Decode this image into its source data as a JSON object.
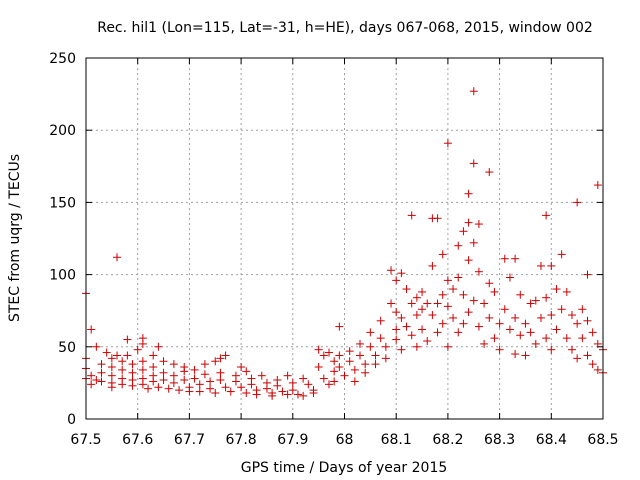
{
  "colors": {
    "points": "#cc0000",
    "axis": "#000000",
    "grid": "#a0a0a0"
  },
  "chart_data": {
    "type": "scatter",
    "title": "Rec. hil1 (Lon=115, Lat=-31, h=HE), days 067-068, 2015, window 002",
    "xlabel": "GPS time / Days of year 2015",
    "ylabel": "STEC from uqrg / TECUs",
    "xlim": [
      67.5,
      68.5
    ],
    "ylim": [
      0,
      250
    ],
    "xticks": [
      "67.5",
      "67.6",
      "67.7",
      "67.8",
      "67.9",
      "68",
      "68.1",
      "68.2",
      "68.3",
      "68.4",
      "68.5"
    ],
    "yticks": [
      "0",
      "50",
      "100",
      "150",
      "200",
      "250"
    ],
    "grid": true,
    "marker": "plus",
    "series": [
      {
        "name": "STEC",
        "points": [
          [
            67.5,
            87
          ],
          [
            67.51,
            62
          ],
          [
            67.52,
            50
          ],
          [
            67.5,
            42
          ],
          [
            67.5,
            35
          ],
          [
            67.51,
            30
          ],
          [
            67.5,
            28
          ],
          [
            67.52,
            27
          ],
          [
            67.51,
            24
          ],
          [
            67.53,
            38
          ],
          [
            67.53,
            32
          ],
          [
            67.53,
            26
          ],
          [
            67.54,
            46
          ],
          [
            67.55,
            42
          ],
          [
            67.55,
            36
          ],
          [
            67.55,
            30
          ],
          [
            67.55,
            25
          ],
          [
            67.55,
            22
          ],
          [
            67.56,
            112
          ],
          [
            67.56,
            44
          ],
          [
            67.57,
            40
          ],
          [
            67.57,
            34
          ],
          [
            67.57,
            28
          ],
          [
            67.57,
            24
          ],
          [
            67.58,
            55
          ],
          [
            67.58,
            44
          ],
          [
            67.59,
            38
          ],
          [
            67.59,
            32
          ],
          [
            67.59,
            27
          ],
          [
            67.59,
            23
          ],
          [
            67.6,
            48
          ],
          [
            67.61,
            56
          ],
          [
            67.61,
            52
          ],
          [
            67.61,
            40
          ],
          [
            67.61,
            34
          ],
          [
            67.61,
            28
          ],
          [
            67.61,
            24
          ],
          [
            67.62,
            21
          ],
          [
            67.63,
            44
          ],
          [
            67.63,
            36
          ],
          [
            67.63,
            30
          ],
          [
            67.63,
            26
          ],
          [
            67.64,
            50
          ],
          [
            67.64,
            22
          ],
          [
            67.65,
            40
          ],
          [
            67.65,
            32
          ],
          [
            67.65,
            27
          ],
          [
            67.66,
            21
          ],
          [
            67.67,
            38
          ],
          [
            67.67,
            30
          ],
          [
            67.67,
            25
          ],
          [
            67.68,
            20
          ],
          [
            67.69,
            36
          ],
          [
            67.69,
            33
          ],
          [
            67.69,
            27
          ],
          [
            67.7,
            22
          ],
          [
            67.7,
            19
          ],
          [
            67.71,
            34
          ],
          [
            67.71,
            28
          ],
          [
            67.72,
            24
          ],
          [
            67.72,
            19
          ],
          [
            67.73,
            38
          ],
          [
            67.73,
            31
          ],
          [
            67.74,
            26
          ],
          [
            67.74,
            21
          ],
          [
            67.75,
            18
          ],
          [
            67.75,
            40
          ],
          [
            67.76,
            42
          ],
          [
            67.76,
            32
          ],
          [
            67.76,
            27
          ],
          [
            67.77,
            44
          ],
          [
            67.77,
            22
          ],
          [
            67.78,
            19
          ],
          [
            67.79,
            30
          ],
          [
            67.79,
            26
          ],
          [
            67.8,
            36
          ],
          [
            67.8,
            22
          ],
          [
            67.81,
            18
          ],
          [
            67.81,
            33
          ],
          [
            67.82,
            28
          ],
          [
            67.82,
            24
          ],
          [
            67.83,
            20
          ],
          [
            67.83,
            17
          ],
          [
            67.84,
            30
          ],
          [
            67.85,
            25
          ],
          [
            67.85,
            21
          ],
          [
            67.86,
            18
          ],
          [
            67.86,
            16
          ],
          [
            67.87,
            27
          ],
          [
            67.87,
            23
          ],
          [
            67.88,
            19
          ],
          [
            67.89,
            17
          ],
          [
            67.89,
            30
          ],
          [
            67.9,
            25
          ],
          [
            67.9,
            20
          ],
          [
            67.91,
            17
          ],
          [
            67.92,
            16
          ],
          [
            67.92,
            28
          ],
          [
            67.93,
            24
          ],
          [
            67.94,
            20
          ],
          [
            67.94,
            18
          ],
          [
            67.95,
            36
          ],
          [
            67.95,
            48
          ],
          [
            67.96,
            44
          ],
          [
            67.96,
            28
          ],
          [
            67.97,
            24
          ],
          [
            67.97,
            46
          ],
          [
            67.98,
            40
          ],
          [
            67.98,
            33
          ],
          [
            67.98,
            26
          ],
          [
            67.99,
            64
          ],
          [
            67.99,
            44
          ],
          [
            67.99,
            36
          ],
          [
            68.0,
            30
          ],
          [
            68.01,
            47
          ],
          [
            68.01,
            40
          ],
          [
            68.02,
            34
          ],
          [
            68.02,
            26
          ],
          [
            68.03,
            52
          ],
          [
            68.03,
            44
          ],
          [
            68.04,
            38
          ],
          [
            68.04,
            32
          ],
          [
            68.05,
            60
          ],
          [
            68.05,
            50
          ],
          [
            68.06,
            44
          ],
          [
            68.06,
            38
          ],
          [
            68.07,
            68
          ],
          [
            68.07,
            56
          ],
          [
            68.08,
            50
          ],
          [
            68.08,
            42
          ],
          [
            68.09,
            103
          ],
          [
            68.09,
            80
          ],
          [
            68.1,
            96
          ],
          [
            68.1,
            74
          ],
          [
            68.1,
            62
          ],
          [
            68.1,
            55
          ],
          [
            68.11,
            101
          ],
          [
            68.11,
            70
          ],
          [
            68.11,
            48
          ],
          [
            68.12,
            90
          ],
          [
            68.12,
            64
          ],
          [
            68.13,
            141
          ],
          [
            68.13,
            80
          ],
          [
            68.13,
            58
          ],
          [
            68.14,
            84
          ],
          [
            68.14,
            72
          ],
          [
            68.14,
            50
          ],
          [
            68.15,
            88
          ],
          [
            68.15,
            76
          ],
          [
            68.15,
            62
          ],
          [
            68.16,
            80
          ],
          [
            68.16,
            54
          ],
          [
            68.17,
            139
          ],
          [
            68.17,
            106
          ],
          [
            68.17,
            72
          ],
          [
            68.18,
            139
          ],
          [
            68.18,
            80
          ],
          [
            68.18,
            60
          ],
          [
            68.19,
            114
          ],
          [
            68.19,
            86
          ],
          [
            68.19,
            66
          ],
          [
            68.2,
            191
          ],
          [
            68.2,
            96
          ],
          [
            68.2,
            78
          ],
          [
            68.2,
            50
          ],
          [
            68.21,
            90
          ],
          [
            68.21,
            70
          ],
          [
            68.22,
            120
          ],
          [
            68.22,
            98
          ],
          [
            68.22,
            60
          ],
          [
            68.23,
            130
          ],
          [
            68.23,
            86
          ],
          [
            68.23,
            66
          ],
          [
            68.24,
            156
          ],
          [
            68.24,
            136
          ],
          [
            68.24,
            110
          ],
          [
            68.24,
            74
          ],
          [
            68.25,
            227
          ],
          [
            68.25,
            177
          ],
          [
            68.25,
            122
          ],
          [
            68.25,
            82
          ],
          [
            68.26,
            135
          ],
          [
            68.26,
            102
          ],
          [
            68.26,
            64
          ],
          [
            68.27,
            80
          ],
          [
            68.27,
            52
          ],
          [
            68.28,
            171
          ],
          [
            68.28,
            94
          ],
          [
            68.28,
            70
          ],
          [
            68.29,
            88
          ],
          [
            68.29,
            56
          ],
          [
            68.3,
            66
          ],
          [
            68.3,
            48
          ],
          [
            68.31,
            111
          ],
          [
            68.31,
            76
          ],
          [
            68.32,
            98
          ],
          [
            68.32,
            62
          ],
          [
            68.33,
            111
          ],
          [
            68.33,
            70
          ],
          [
            68.33,
            45
          ],
          [
            68.34,
            86
          ],
          [
            68.34,
            58
          ],
          [
            68.35,
            66
          ],
          [
            68.35,
            44
          ],
          [
            68.36,
            80
          ],
          [
            68.36,
            60
          ],
          [
            68.37,
            82
          ],
          [
            68.37,
            52
          ],
          [
            68.38,
            106
          ],
          [
            68.38,
            70
          ],
          [
            68.39,
            141
          ],
          [
            68.39,
            84
          ],
          [
            68.39,
            56
          ],
          [
            68.4,
            106
          ],
          [
            68.4,
            72
          ],
          [
            68.4,
            48
          ],
          [
            68.41,
            90
          ],
          [
            68.41,
            62
          ],
          [
            68.42,
            114
          ],
          [
            68.42,
            76
          ],
          [
            68.43,
            88
          ],
          [
            68.43,
            56
          ],
          [
            68.44,
            72
          ],
          [
            68.44,
            48
          ],
          [
            68.45,
            150
          ],
          [
            68.45,
            66
          ],
          [
            68.45,
            42
          ],
          [
            68.46,
            76
          ],
          [
            68.46,
            56
          ],
          [
            68.47,
            100
          ],
          [
            68.47,
            68
          ],
          [
            68.47,
            44
          ],
          [
            68.48,
            60
          ],
          [
            68.48,
            38
          ],
          [
            68.49,
            162
          ],
          [
            68.49,
            52
          ],
          [
            68.49,
            34
          ],
          [
            68.5,
            48
          ],
          [
            68.5,
            32
          ]
        ]
      }
    ]
  }
}
